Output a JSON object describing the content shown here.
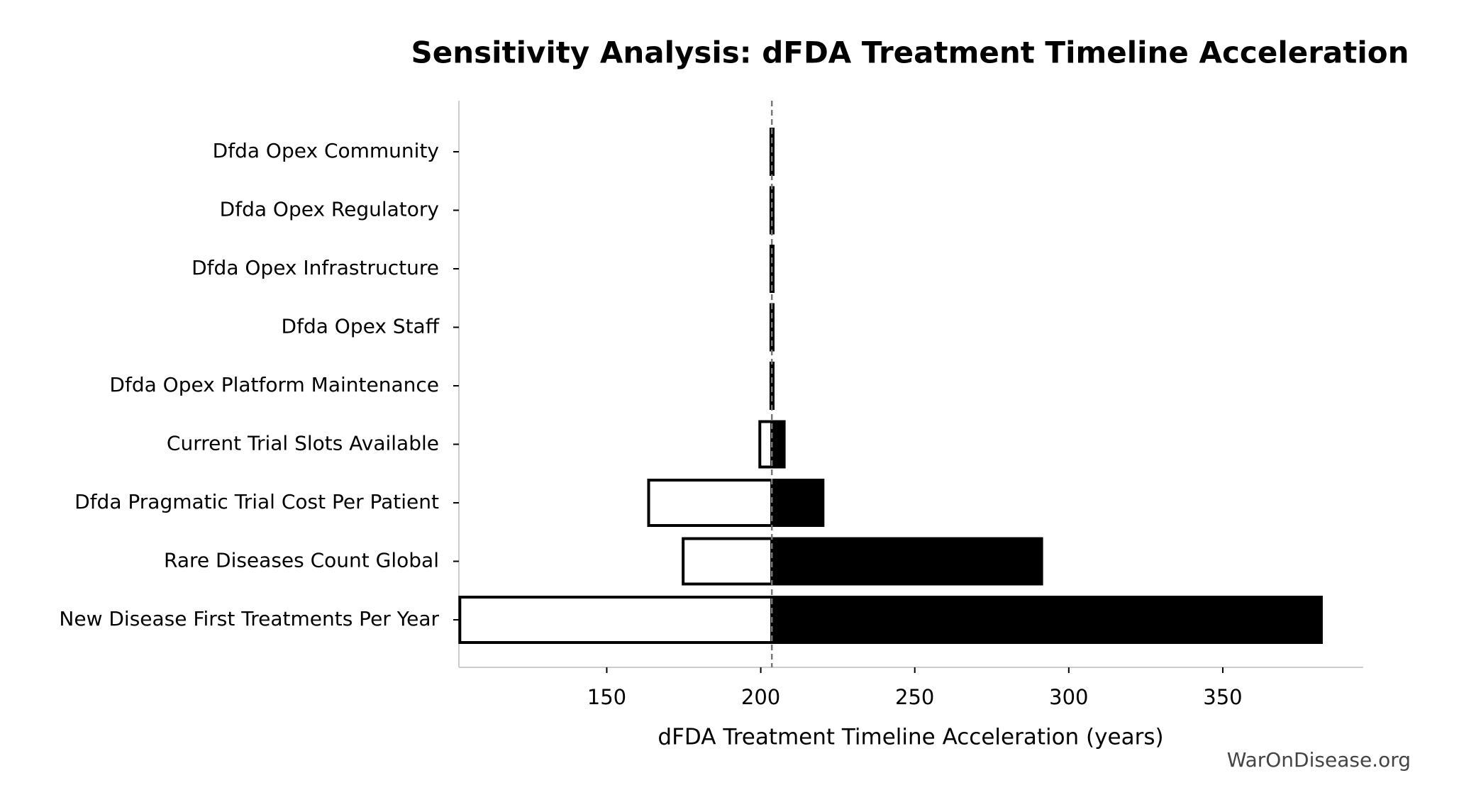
{
  "chart_data": {
    "type": "tornado",
    "title": "Sensitivity Analysis: dFDA Treatment Timeline Acceleration",
    "xlabel": "dFDA Treatment Timeline Acceleration (years)",
    "watermark": "WarOnDisease.org",
    "categories": [
      "Dfda Opex Community",
      "Dfda Opex Regulatory",
      "Dfda Opex Infrastructure",
      "Dfda Opex Staff",
      "Dfda Opex Platform Maintenance",
      "Current Trial Slots Available",
      "Dfda Pragmatic Trial Cost Per Patient",
      "Rare Diseases Count Global",
      "New Disease First Treatments Per Year"
    ],
    "baseline": 203.6,
    "low": [
      203.3,
      203.3,
      203.3,
      203.3,
      203.3,
      199.7,
      163.6,
      174.8,
      102.3
    ],
    "high": [
      204.0,
      204.0,
      204.0,
      204.0,
      204.0,
      207.6,
      220.2,
      291.2,
      382.0
    ],
    "low_color": "#ffffff",
    "high_color": "#000000",
    "xlim": [
      102,
      395.6
    ],
    "xticks": [
      150,
      200,
      250,
      300,
      350
    ]
  }
}
